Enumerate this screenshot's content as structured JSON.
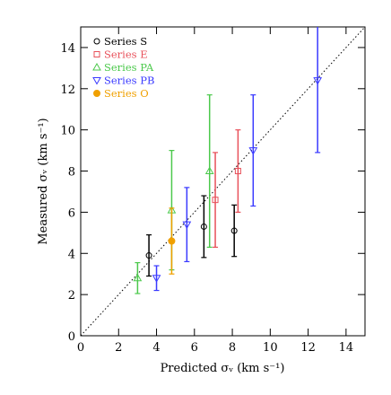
{
  "chart_data": {
    "type": "scatter",
    "xlabel": "Predicted σᵥ (km s⁻¹)",
    "ylabel": "Measured σᵥ (km s⁻¹)",
    "xlim": [
      0,
      15
    ],
    "ylim": [
      0,
      15
    ],
    "xticks": [
      0,
      2,
      4,
      6,
      8,
      10,
      12,
      14
    ],
    "yticks": [
      0,
      2,
      4,
      6,
      8,
      10,
      12,
      14
    ],
    "legend": "upper left",
    "series": [
      {
        "name": "Series S",
        "color": "#000000",
        "marker": "open-circle",
        "x": [
          3.6,
          6.5,
          8.1
        ],
        "values": [
          3.9,
          5.3,
          5.1
        ],
        "errors": [
          1.0,
          1.5,
          1.25
        ]
      },
      {
        "name": "Series E",
        "color": "#e8505a",
        "marker": "open-square",
        "x": [
          7.1,
          8.3
        ],
        "values": [
          6.6,
          8.0
        ],
        "errors": [
          2.3,
          2.0
        ]
      },
      {
        "name": "Series PA",
        "color": "#4cc94c",
        "marker": "open-triangle",
        "x": [
          3.0,
          4.8,
          6.8
        ],
        "values": [
          2.8,
          6.1,
          8.0
        ],
        "errors": [
          0.75,
          2.9,
          3.7
        ]
      },
      {
        "name": "Series PB",
        "color": "#3a3aff",
        "marker": "open-down-triangle",
        "x": [
          4.0,
          5.6,
          9.1,
          12.5
        ],
        "values": [
          2.8,
          5.4,
          9.0,
          12.4
        ],
        "errors": [
          0.6,
          1.8,
          2.7,
          3.5
        ]
      },
      {
        "name": "Series O",
        "color": "#f0a000",
        "marker": "filled-circle",
        "x": [
          4.8
        ],
        "values": [
          4.6
        ],
        "errors": [
          1.6
        ]
      }
    ]
  }
}
